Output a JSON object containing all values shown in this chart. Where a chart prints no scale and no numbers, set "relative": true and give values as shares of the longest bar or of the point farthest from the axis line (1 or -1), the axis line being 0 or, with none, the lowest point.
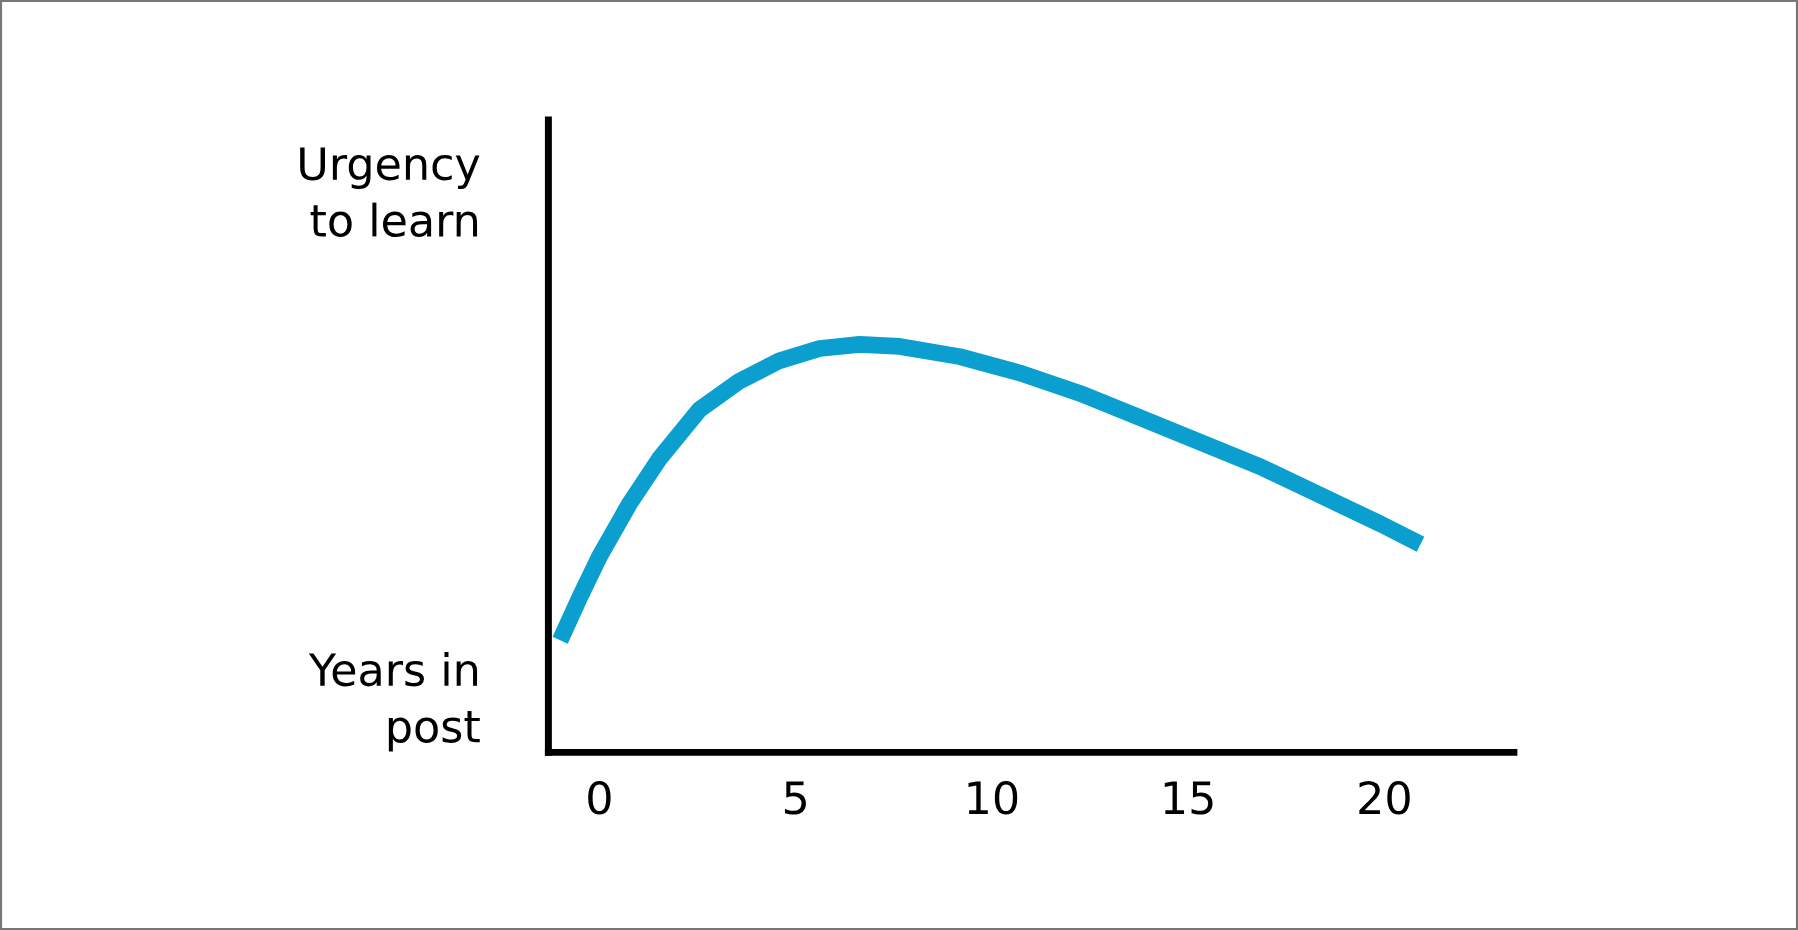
{
  "chart_data": {
    "type": "line",
    "relative": true,
    "xlabel": "Years in\npost",
    "ylabel": "Urgency\nto learn",
    "xlim": [
      -1.3,
      23.3
    ],
    "xticks": [
      0,
      5,
      10,
      15,
      20
    ],
    "marker": "none",
    "line_style": "solid",
    "series": [
      {
        "color": "#0b9fd0",
        "x": [
          -1.0,
          -0.5,
          0,
          0.77,
          1.53,
          2.55,
          3.57,
          4.59,
          5.61,
          6.63,
          7.65,
          9.18,
          10.71,
          12.24,
          13.78,
          15.31,
          16.84,
          18.37,
          19.9,
          20.92
        ],
        "values": [
          0.275,
          0.38,
          0.48,
          0.61,
          0.72,
          0.84,
          0.91,
          0.96,
          0.99,
          1.0,
          0.995,
          0.97,
          0.93,
          0.88,
          0.82,
          0.76,
          0.7,
          0.63,
          0.56,
          0.51
        ]
      }
    ]
  }
}
